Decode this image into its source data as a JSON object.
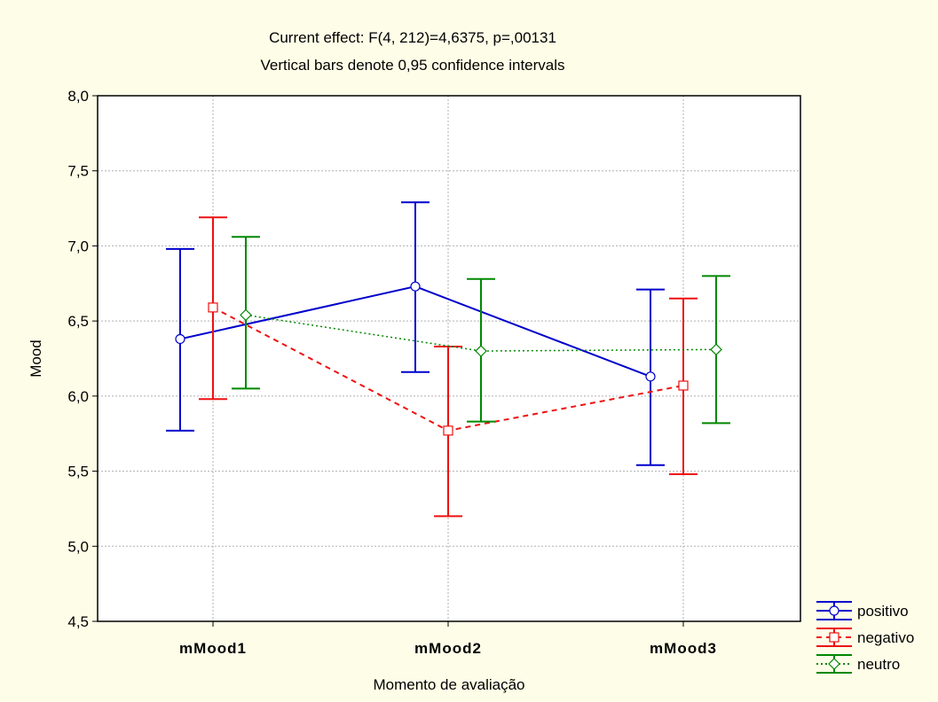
{
  "chart_data": {
    "type": "line",
    "title": "Current effect: F(4, 212)=4,6375, p=,00131",
    "subtitle": "Vertical bars denote 0,95 confidence intervals",
    "xlabel": "Momento de avaliação",
    "ylabel": "Mood",
    "categories": [
      "mMood1",
      "mMood2",
      "mMood3"
    ],
    "ylim": [
      4.5,
      8.0
    ],
    "yticks": [
      "4,5",
      "5,0",
      "5,5",
      "6,0",
      "6,5",
      "7,0",
      "7,5",
      "8,0"
    ],
    "grid": true,
    "legend_position": "bottom-right",
    "series": [
      {
        "name": "positivo",
        "color": "#0000cc",
        "line_style": "solid",
        "marker": "circle",
        "values": [
          6.38,
          6.73,
          6.13
        ],
        "ci_low": [
          5.77,
          6.16,
          5.54
        ],
        "ci_high": [
          6.98,
          7.29,
          6.71
        ]
      },
      {
        "name": "negativo",
        "color": "#ee1111",
        "line_style": "dashed",
        "marker": "square",
        "values": [
          6.59,
          5.77,
          6.07
        ],
        "ci_low": [
          5.98,
          5.2,
          5.48
        ],
        "ci_high": [
          7.19,
          6.33,
          6.65
        ]
      },
      {
        "name": "neutro",
        "color": "#008800",
        "line_style": "dotted",
        "marker": "diamond",
        "values": [
          6.54,
          6.3,
          6.31
        ],
        "ci_low": [
          6.05,
          5.83,
          5.82
        ],
        "ci_high": [
          7.06,
          6.78,
          6.8
        ]
      }
    ]
  }
}
